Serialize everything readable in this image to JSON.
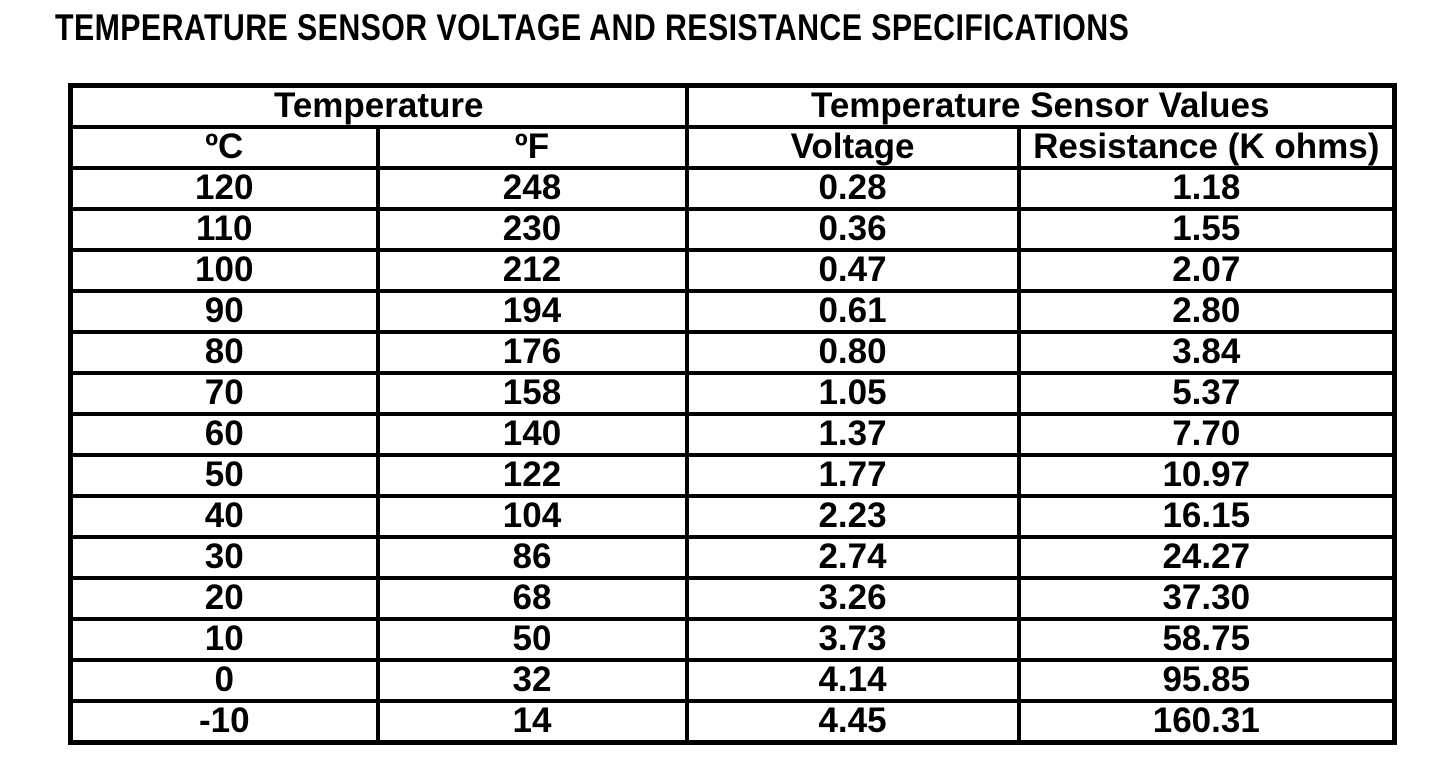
{
  "page": {
    "title": "TEMPERATURE SENSOR VOLTAGE AND RESISTANCE SPECIFICATIONS"
  },
  "table": {
    "group_headers": [
      {
        "label": "Temperature",
        "colspan": 2
      },
      {
        "label": "Temperature Sensor Values",
        "colspan": 2
      }
    ],
    "column_headers": [
      "ºC",
      "ºF",
      "Voltage",
      "Resistance (K ohms)"
    ],
    "rows": [
      [
        "120",
        "248",
        "0.28",
        "1.18"
      ],
      [
        "110",
        "230",
        "0.36",
        "1.55"
      ],
      [
        "100",
        "212",
        "0.47",
        "2.07"
      ],
      [
        "90",
        "194",
        "0.61",
        "2.80"
      ],
      [
        "80",
        "176",
        "0.80",
        "3.84"
      ],
      [
        "70",
        "158",
        "1.05",
        "5.37"
      ],
      [
        "60",
        "140",
        "1.37",
        "7.70"
      ],
      [
        "50",
        "122",
        "1.77",
        "10.97"
      ],
      [
        "40",
        "104",
        "2.23",
        "16.15"
      ],
      [
        "30",
        "86",
        "2.74",
        "24.27"
      ],
      [
        "20",
        "68",
        "3.26",
        "37.30"
      ],
      [
        "10",
        "50",
        "3.73",
        "58.75"
      ],
      [
        "0",
        "32",
        "4.14",
        "95.85"
      ],
      [
        "-10",
        "14",
        "4.45",
        "160.31"
      ]
    ],
    "colors": {
      "border": "#000000",
      "text": "#000000",
      "background": "#ffffff"
    }
  }
}
